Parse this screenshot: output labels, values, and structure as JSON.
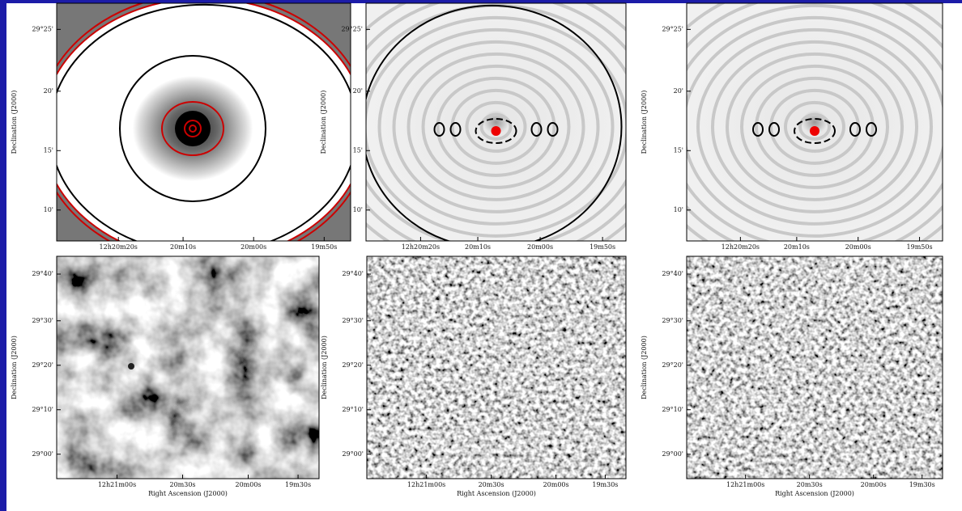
{
  "panels": [
    {
      "ylabel": "Declination (J2000)",
      "yticks": [
        "29°25'",
        "20'",
        "15'",
        "10'"
      ],
      "xticks": [
        "12h20m20s",
        "20m10s",
        "20m00s",
        "19m50s"
      ]
    },
    {
      "ylabel": "Declination (J2000)",
      "yticks": [
        "29°25'",
        "20'",
        "15'",
        "10'"
      ],
      "xticks": [
        "12h20m20s",
        "20m10s",
        "20m00s",
        "19m50s"
      ]
    },
    {
      "ylabel": "Declination (J2000)",
      "yticks": [
        "29°25'",
        "20'",
        "15'",
        "10'"
      ],
      "xticks": [
        "12h20m20s",
        "20m10s",
        "20m00s",
        "19m50s"
      ]
    },
    {
      "ylabel": "Declination (J2000)",
      "yticks": [
        "29°40'",
        "29°30'",
        "29°20'",
        "29°10'",
        "29°00'"
      ],
      "xticks": [
        "12h21m00s",
        "20m30s",
        "20m00s",
        "19m30s"
      ],
      "xlabel": "Right Ascension (J2000)"
    },
    {
      "ylabel": "Declination (J2000)",
      "yticks": [
        "29°40'",
        "29°30'",
        "29°20'",
        "29°10'",
        "29°00'"
      ],
      "xticks": [
        "12h21m00s",
        "20m30s",
        "20m00s",
        "19m30s"
      ],
      "xlabel": "Right Ascension (J2000)"
    },
    {
      "ylabel": "Declination (J2000)",
      "yticks": [
        "29°40'",
        "29°30'",
        "29°20'",
        "29°10'",
        "29°00'"
      ],
      "xticks": [
        "12h21m00s",
        "20m30s",
        "20m00s",
        "19m30s"
      ],
      "xlabel": "Right Ascension (J2000)"
    }
  ]
}
